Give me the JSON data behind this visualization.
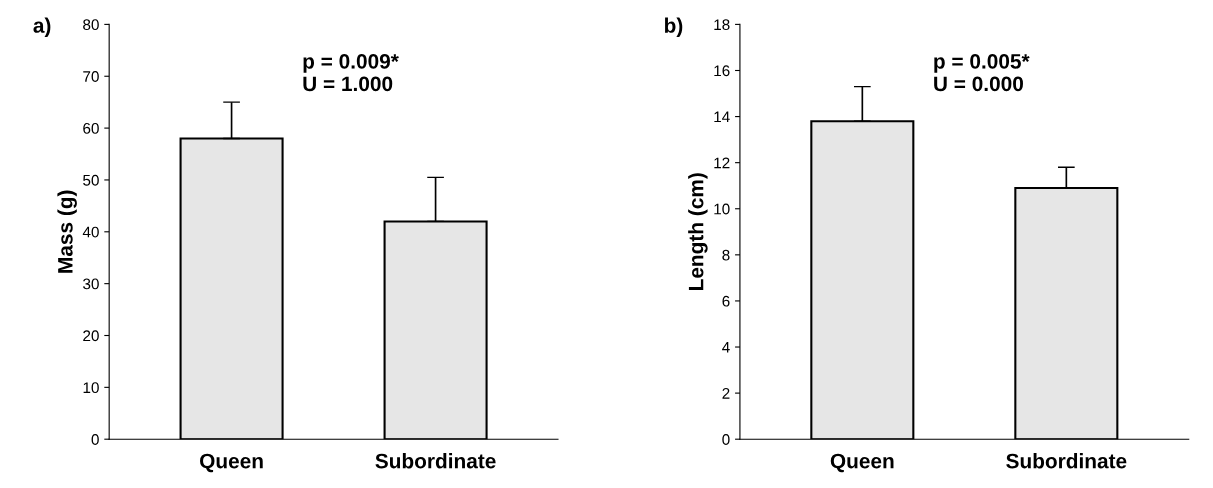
{
  "chart_data": [
    {
      "type": "bar",
      "title": "a)",
      "ylabel": "Mass (g)",
      "categories": [
        "Queen",
        "Subordinate"
      ],
      "values": [
        58,
        42
      ],
      "errors": [
        [
          58,
          65
        ],
        [
          42,
          50.5
        ]
      ],
      "color": "#e6e6e6",
      "ylim": [
        0,
        80
      ],
      "yticks": [
        0,
        10,
        20,
        30,
        40,
        50,
        60,
        70,
        80
      ],
      "grid": false,
      "annotations": [
        "p = 0.009*\nU = 1.000"
      ]
    },
    {
      "type": "bar",
      "title": "b)",
      "ylabel": "Length (cm)",
      "categories": [
        "Queen",
        "Subordinate"
      ],
      "values": [
        13.8,
        10.9
      ],
      "errors": [
        [
          13.8,
          15.3
        ],
        [
          10.9,
          11.8
        ]
      ],
      "color": "#e6e6e6",
      "ylim": [
        0,
        18
      ],
      "yticks": [
        0,
        2,
        4,
        6,
        8,
        10,
        12,
        14,
        16,
        18
      ],
      "grid": false,
      "annotations": [
        "p = 0.005*\nU = 0.000"
      ]
    }
  ]
}
